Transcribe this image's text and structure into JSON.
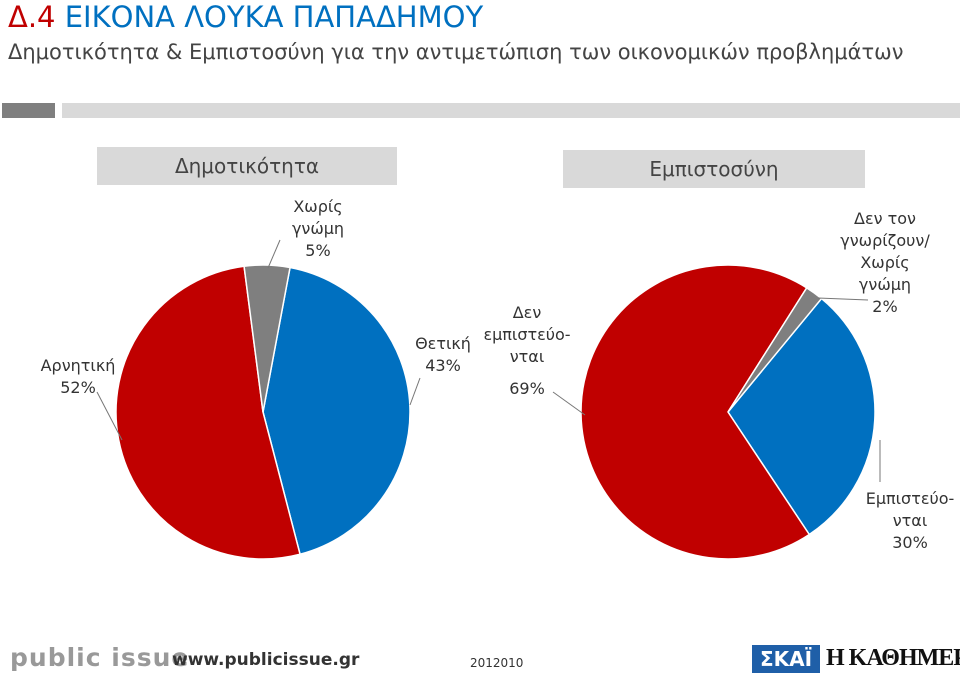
{
  "header": {
    "code": "Δ.4",
    "title": "ΕΙΚΟΝΑ ΛΟΥΚΑ ΠΑΠΑΔΗΜΟΥ",
    "subtitle": "Δημοτικότητα & Εμπιστοσύνη για την αντιμετώπιση των οικονομικών προβλημάτων"
  },
  "chart_data": [
    {
      "type": "pie",
      "title": "Δημοτικότητα",
      "categories": [
        "Θετική",
        "Αρνητική",
        "Χωρίς\nγνώμη"
      ],
      "values": [
        43,
        52,
        5
      ],
      "value_labels": [
        "43%",
        "52%",
        "5%"
      ],
      "colors": [
        "#0070c0",
        "#c00000",
        "#7f7f7f"
      ]
    },
    {
      "type": "pie",
      "title": "Εμπιστοσύνη",
      "categories": [
        "Εμπιστεύο-\nνται",
        "Δεν\nεμπιστεύο-\nνται",
        "Δεν τον\nγνωρίζουν/\nΧωρίς\nγνώμη"
      ],
      "values": [
        30,
        69,
        2
      ],
      "value_labels": [
        "30%",
        "69%",
        "2%"
      ],
      "colors": [
        "#0070c0",
        "#c00000",
        "#7f7f7f"
      ]
    }
  ],
  "footer": {
    "logo": "public issue",
    "url": "www.publicissue.gr",
    "code": "2012010",
    "tv": "ΣΚΑΪ",
    "newspaper": "Η ΚΑΘΗΜΕΡΙΝΗ"
  }
}
